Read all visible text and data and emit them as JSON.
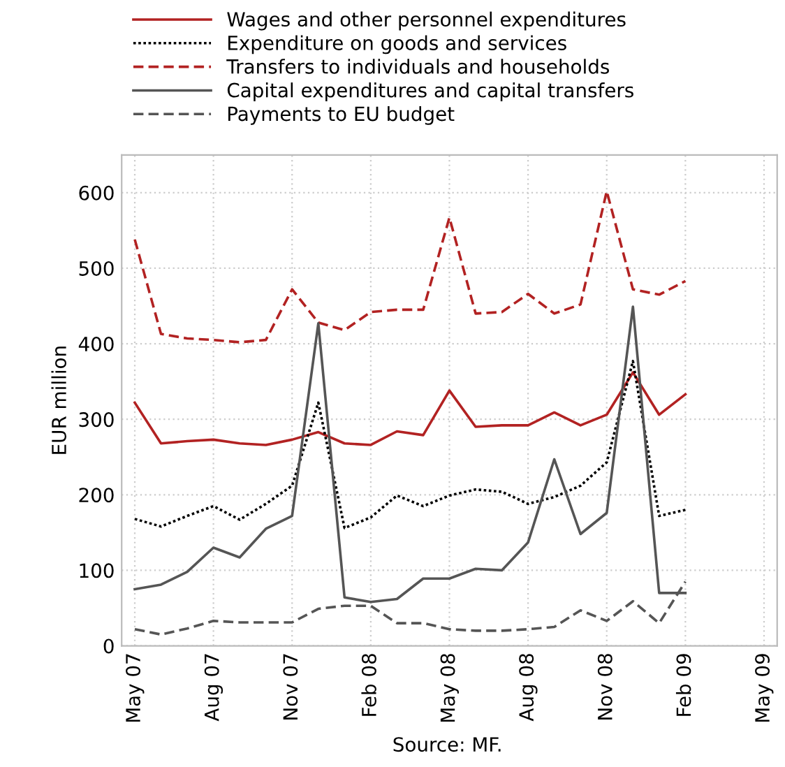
{
  "chart_data": {
    "type": "line",
    "categories": [
      "May 07",
      null,
      null,
      "Aug 07",
      null,
      null,
      "Nov 07",
      null,
      null,
      "Feb 08",
      null,
      null,
      "May 08",
      null,
      null,
      "Aug 08",
      null,
      null,
      "Nov 08",
      null,
      null,
      "Feb 09",
      null,
      null,
      "May 09"
    ],
    "series": [
      {
        "name": "Wages and other personnel expenditures",
        "color": "#b22222",
        "line_style": "solid",
        "values": [
          322,
          268,
          271,
          273,
          268,
          266,
          273,
          283,
          268,
          266,
          284,
          279,
          338,
          290,
          292,
          292,
          309,
          292,
          306,
          362,
          306,
          333,
          null,
          null,
          null
        ]
      },
      {
        "name": "Expenditure on goods and services",
        "color": "#000000",
        "line_style": "dotted",
        "values": [
          168,
          158,
          172,
          185,
          167,
          188,
          212,
          322,
          156,
          170,
          199,
          185,
          199,
          207,
          204,
          188,
          197,
          212,
          243,
          377,
          172,
          180,
          null,
          null,
          null
        ]
      },
      {
        "name": "Transfers to individuals and households",
        "color": "#b22222",
        "line_style": "dashed",
        "values": [
          538,
          413,
          407,
          405,
          402,
          405,
          472,
          428,
          418,
          442,
          445,
          445,
          567,
          440,
          442,
          466,
          440,
          452,
          602,
          472,
          465,
          483,
          null,
          null,
          null
        ]
      },
      {
        "name": "Capital expenditures and capital transfers",
        "color": "#555555",
        "line_style": "solid",
        "values": [
          75,
          81,
          98,
          130,
          117,
          155,
          172,
          427,
          64,
          58,
          62,
          89,
          89,
          102,
          100,
          137,
          247,
          148,
          176,
          449,
          70,
          70,
          null,
          null,
          null
        ]
      },
      {
        "name": "Payments to EU budget",
        "color": "#555555",
        "line_style": "dashed",
        "values": [
          22,
          15,
          23,
          33,
          31,
          31,
          31,
          49,
          53,
          53,
          30,
          30,
          22,
          20,
          20,
          22,
          25,
          47,
          33,
          59,
          30,
          85,
          null,
          null,
          null
        ]
      }
    ],
    "ylabel": "EUR million",
    "ylim": [
      0,
      650
    ],
    "yticks": [
      0,
      100,
      200,
      300,
      400,
      500,
      600
    ],
    "grid": true,
    "legend": "top",
    "marker": "none",
    "annotations": [
      "Source: MF."
    ]
  }
}
